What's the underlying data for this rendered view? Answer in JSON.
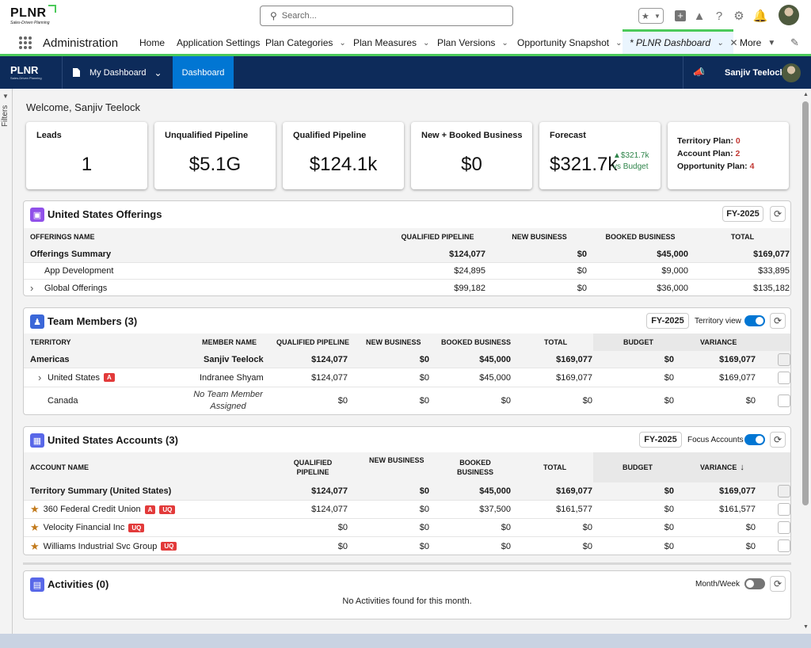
{
  "global_header": {
    "logo_text": "PLNR",
    "logo_tagline": "Sales-Driven Planning",
    "search_placeholder": "Search..."
  },
  "nav": {
    "app_name": "Administration",
    "items": [
      {
        "label": "Home"
      },
      {
        "label": "Application Settings"
      },
      {
        "label": "Plan Categories"
      },
      {
        "label": "Plan Measures"
      },
      {
        "label": "Plan Versions"
      },
      {
        "label": "Opportunity Snapshot"
      },
      {
        "label": "* PLNR Dashboard"
      },
      {
        "label": "More"
      }
    ]
  },
  "appbar": {
    "logo_text": "PLNR",
    "logo_tagline": "Sales-Driven Planning",
    "dashboard_menu": "My Dashboard",
    "active_tab": "Dashboard",
    "user_name": "Sanjiv Teelock"
  },
  "filters_label": "Filters",
  "welcome": "Welcome, Sanjiv Teelock",
  "kpis": [
    {
      "title": "Leads",
      "value": "1"
    },
    {
      "title": "Unqualified Pipeline",
      "value": "$5.1G"
    },
    {
      "title": "Qualified Pipeline",
      "value": "$124.1k"
    },
    {
      "title": "New + Booked Business",
      "value": "$0"
    },
    {
      "title": "Forecast",
      "value": "$321.7k",
      "delta": "$321.7k",
      "delta_note": "vs Budget"
    }
  ],
  "plans": {
    "territory_label": "Territory Plan:",
    "territory_value": "0",
    "account_label": "Account Plan:",
    "account_value": "2",
    "opportunity_label": "Opportunity Plan:",
    "opportunity_value": "4"
  },
  "offerings": {
    "title": "United States Offerings",
    "fy": "FY-2025",
    "headers": [
      "OFFERINGS NAME",
      "QUALIFIED PIPELINE",
      "NEW BUSINESS",
      "BOOKED BUSINESS",
      "TOTAL"
    ],
    "rows": [
      {
        "name": "Offerings Summary",
        "qp": "$124,077",
        "nb": "$0",
        "bb": "$45,000",
        "total": "$169,077"
      },
      {
        "name": "App Development",
        "qp": "$24,895",
        "nb": "$0",
        "bb": "$9,000",
        "total": "$33,895"
      },
      {
        "name": "Global Offerings",
        "qp": "$99,182",
        "nb": "$0",
        "bb": "$36,000",
        "total": "$135,182"
      }
    ]
  },
  "team": {
    "title": "Team Members (3)",
    "fy": "FY-2025",
    "toggle_label": "Territory view",
    "headers": [
      "TERRITORY",
      "MEMBER NAME",
      "QUALIFIED PIPELINE",
      "NEW BUSINESS",
      "BOOKED BUSINESS",
      "TOTAL",
      "BUDGET",
      "VARIANCE"
    ],
    "rows": [
      {
        "territory": "Americas",
        "member": "Sanjiv Teelock",
        "qp": "$124,077",
        "nb": "$0",
        "bb": "$45,000",
        "total": "$169,077",
        "budget": "$0",
        "variance": "$169,077"
      },
      {
        "territory": "United States",
        "badge": "A",
        "member": "Indranee Shyam",
        "qp": "$124,077",
        "nb": "$0",
        "bb": "$45,000",
        "total": "$169,077",
        "budget": "$0",
        "variance": "$169,077"
      },
      {
        "territory": "Canada",
        "member_line1": "No Team Member",
        "member_line2": "Assigned",
        "qp": "$0",
        "nb": "$0",
        "bb": "$0",
        "total": "$0",
        "budget": "$0",
        "variance": "$0"
      }
    ]
  },
  "accounts": {
    "title": "United States Accounts (3)",
    "fy": "FY-2025",
    "toggle_label": "Focus Accounts",
    "headers": {
      "name": "ACCOUNT NAME",
      "qp1": "QUALIFIED",
      "qp2": "PIPELINE",
      "nb": "NEW BUSINESS",
      "bb1": "BOOKED",
      "bb2": "BUSINESS",
      "total": "TOTAL",
      "budget": "BUDGET",
      "variance": "VARIANCE"
    },
    "rows": [
      {
        "name": "Territory Summary (United States)",
        "qp": "$124,077",
        "nb": "$0",
        "bb": "$45,000",
        "total": "$169,077",
        "budget": "$0",
        "variance": "$169,077"
      },
      {
        "name": "360 Federal Credit Union",
        "badge1": "A",
        "badge2": "UQ",
        "qp": "$124,077",
        "nb": "$0",
        "bb": "$37,500",
        "total": "$161,577",
        "budget": "$0",
        "variance": "$161,577"
      },
      {
        "name": "Velocity Financial Inc",
        "badge2": "UQ",
        "qp": "$0",
        "nb": "$0",
        "bb": "$0",
        "total": "$0",
        "budget": "$0",
        "variance": "$0"
      },
      {
        "name": "Williams Industrial Svc Group",
        "badge2": "UQ",
        "qp": "$0",
        "nb": "$0",
        "bb": "$0",
        "total": "$0",
        "budget": "$0",
        "variance": "$0"
      }
    ]
  },
  "activities": {
    "title": "Activities (0)",
    "toggle_label": "Month/Week",
    "empty": "No Activities found for this month."
  },
  "colors": {
    "accent": "#0176d3",
    "brand_green": "#4bca5a",
    "appbar": "#0d2b5a",
    "badge": "#e23a3a"
  }
}
